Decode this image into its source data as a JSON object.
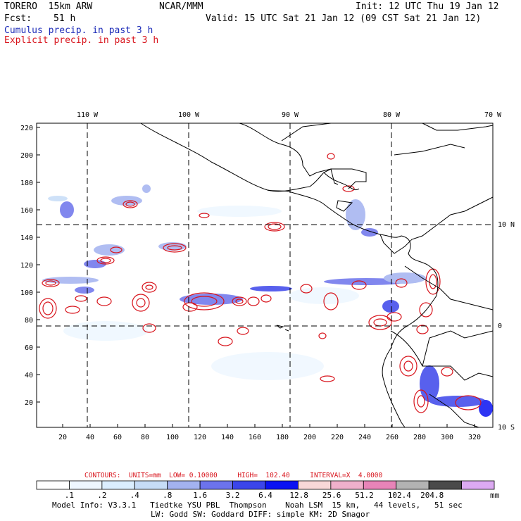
{
  "header": {
    "model": "TORERO  15km ARW",
    "org": "NCAR/MMM",
    "init": "Init: 12 UTC Thu 19 Jan 12",
    "fcst_label": "Fcst:",
    "fcst_value": "51 h",
    "valid": "Valid: 15 UTC Sat 21 Jan 12 (09 CST Sat 21 Jan 12)"
  },
  "legend": {
    "cumulus": "Cumulus precip. in past 3 h",
    "explicit": "Explicit precip. in past 3 h"
  },
  "map": {
    "lon_labels": [
      "110 W",
      "100 W",
      "90 W",
      "80 W",
      "70 W"
    ],
    "lat_labels": [
      "10 N",
      "0",
      "10 S"
    ],
    "y_ticks": [
      "220",
      "200",
      "180",
      "160",
      "140",
      "120",
      "100",
      "80",
      "60",
      "40",
      "20"
    ],
    "x_ticks": [
      "20",
      "40",
      "60",
      "80",
      "100",
      "120",
      "140",
      "160",
      "180",
      "200",
      "220",
      "240",
      "260",
      "280",
      "300",
      "320"
    ]
  },
  "contours": {
    "text": "CONTOURS:  UNITS=mm  LOW= 0.10000     HIGH=  102.40     INTERVAL=X  4.0000"
  },
  "colorbar": {
    "labels": [
      ".1",
      ".2",
      ".4",
      ".8",
      "1.6",
      "3.2",
      "6.4",
      "12.8",
      "25.6",
      "51.2",
      "102.4",
      "204.8"
    ],
    "unit": "mm",
    "colors": [
      "#ffffff",
      "#eef7ff",
      "#dbeeff",
      "#c6dcf7",
      "#a3b2f0",
      "#6c73ec",
      "#3b45ea",
      "#0a12f2",
      "#f8d8d8",
      "#f0b0cc",
      "#e784b8",
      "#b3b3b3",
      "#4a4a4a",
      "#dcaaf2"
    ]
  },
  "footer": {
    "line1": "Model Info: V3.3.1   Tiedtke YSU PBL  Thompson    Noah LSM  15 km,   44 levels,   51 sec",
    "line2": "LW: Godd SW: Goddard DIFF: simple KM: 2D Smagor"
  }
}
